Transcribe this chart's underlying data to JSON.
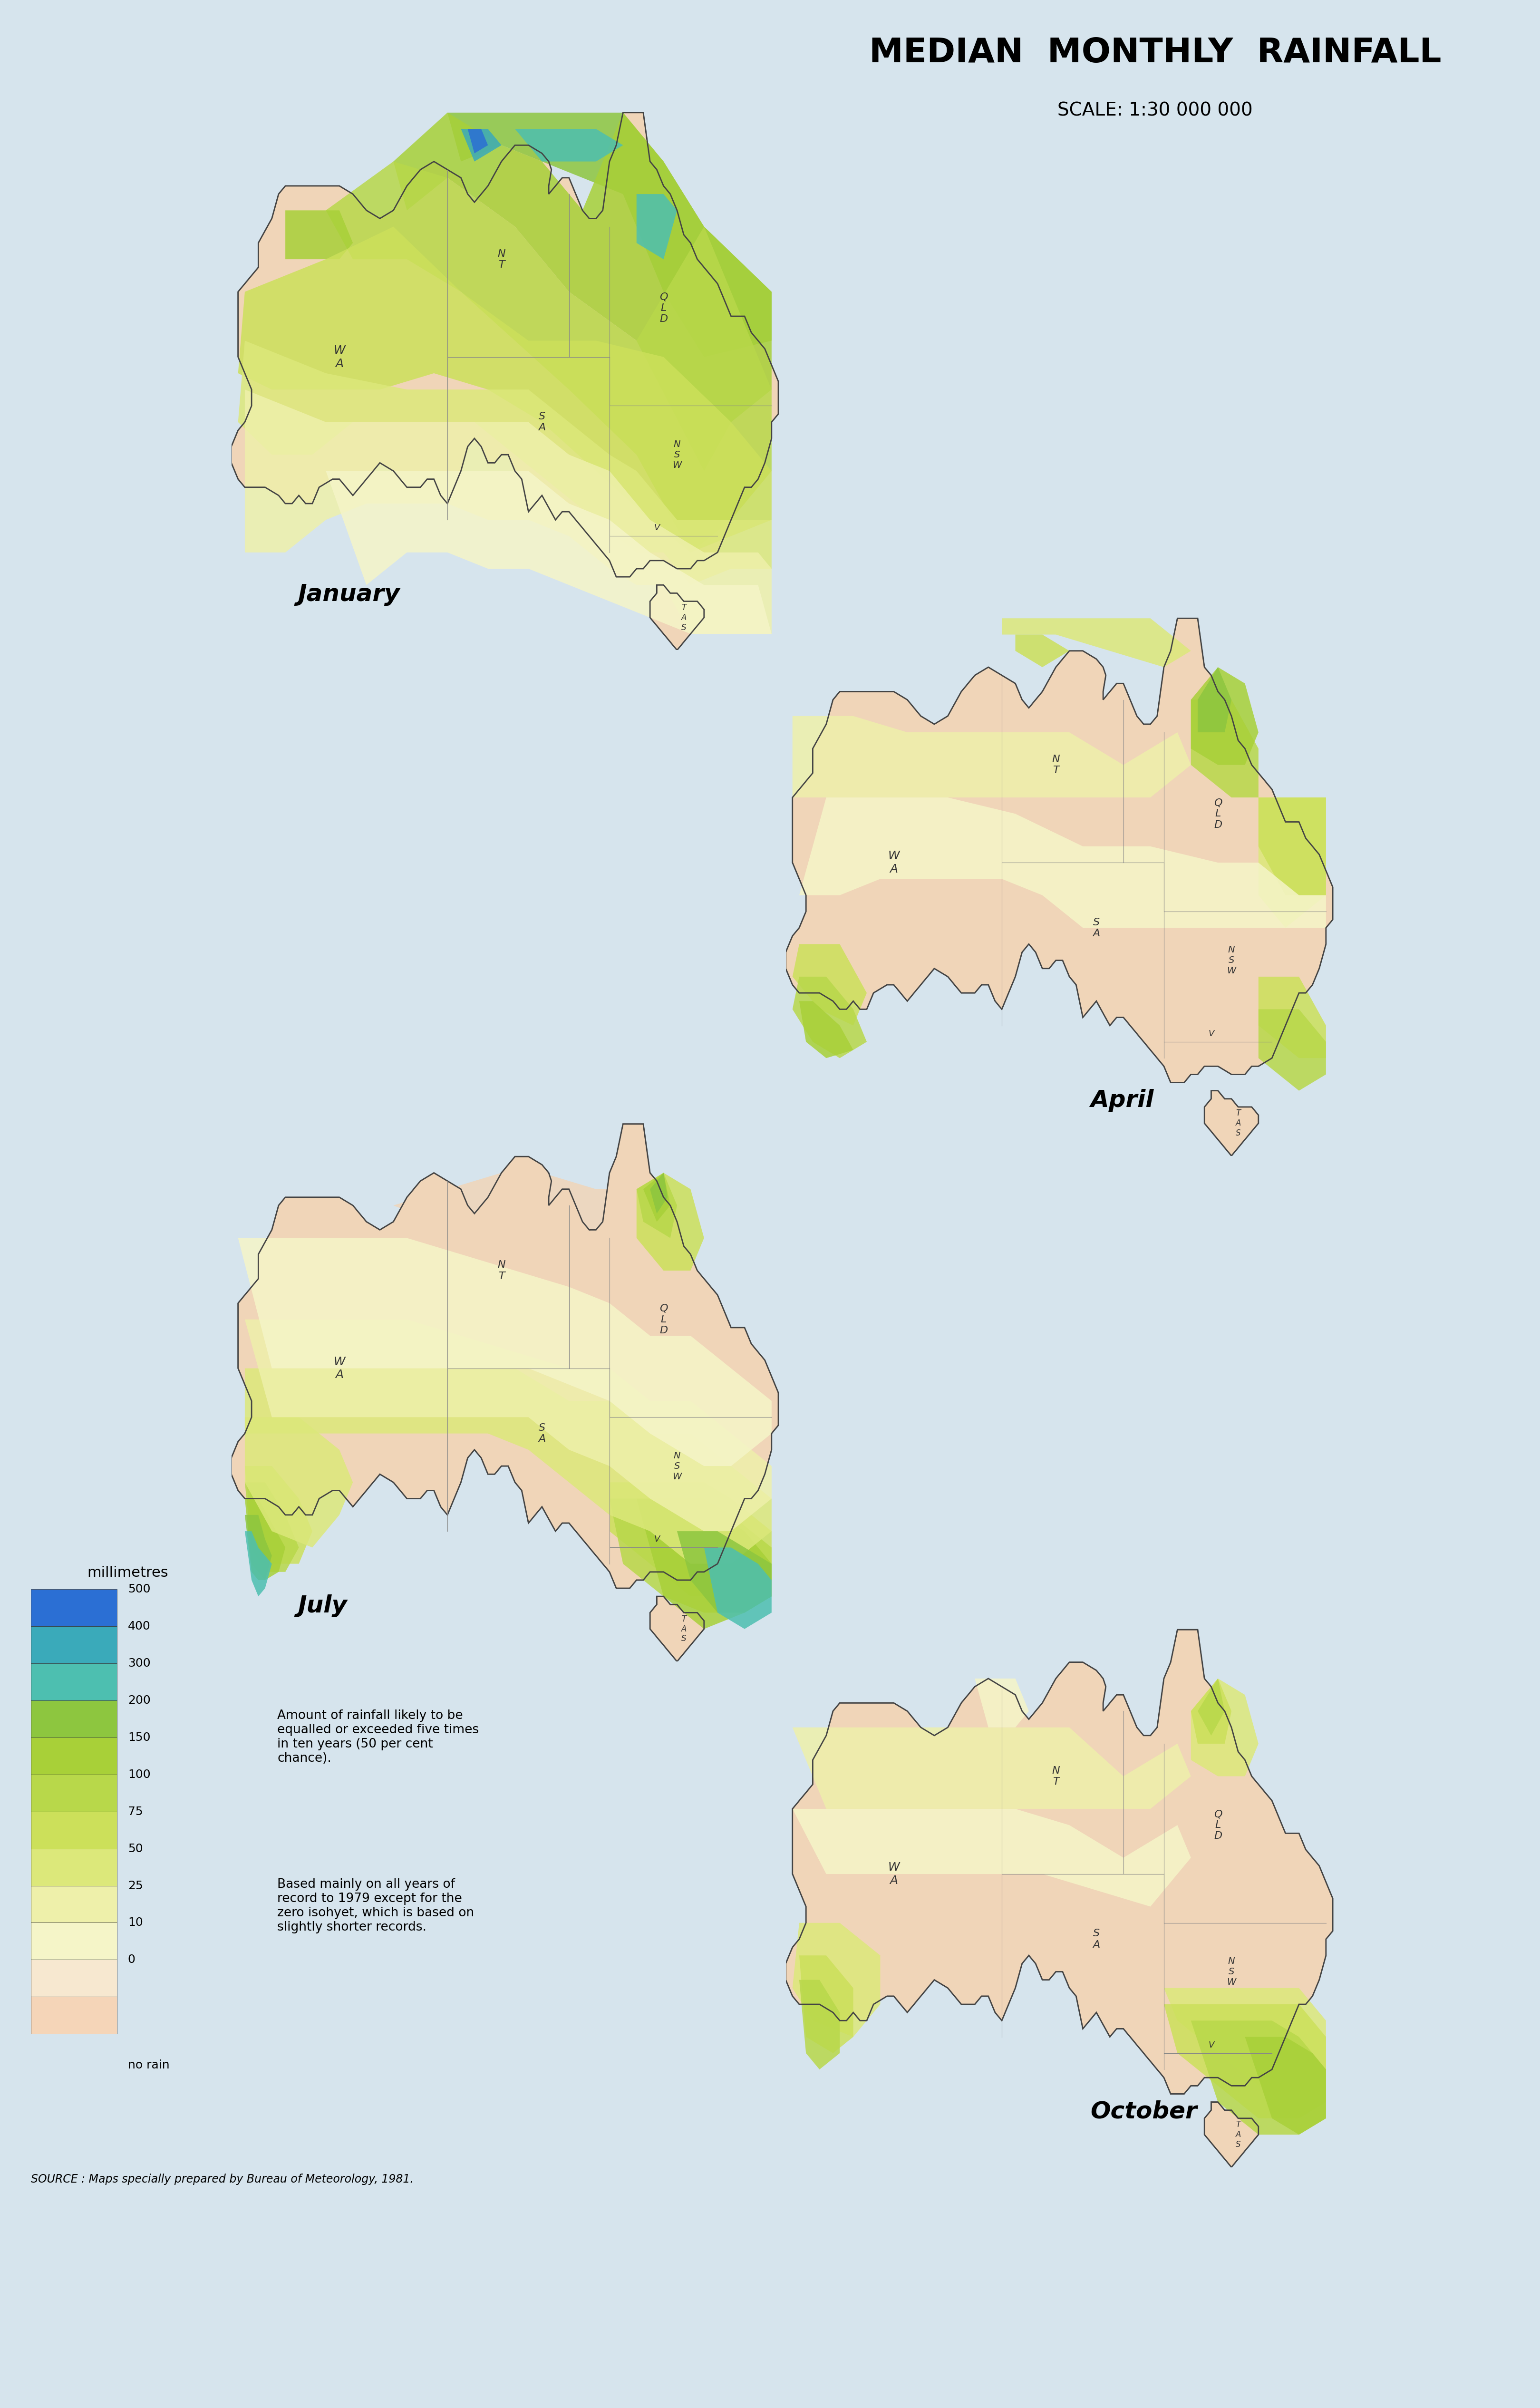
{
  "title": "MEDIAN  MONTHLY  RAINFALL",
  "scale": "SCALE: 1:30 000 000",
  "source": "SOURCE : Maps specially prepared by Bureau of Meteorology, 1981.",
  "background_color": "#d6e4ed",
  "months": [
    "January",
    "April",
    "July",
    "October"
  ],
  "legend_title": "millimetres",
  "legend_labels": [
    "500",
    "400",
    "300",
    "200",
    "150",
    "100",
    "75",
    "50",
    "25",
    "10",
    "0",
    "no rain"
  ],
  "legend_colors": [
    "#2b6fd4",
    "#3aaaba",
    "#4dbfb0",
    "#8dc63f",
    "#a8d038",
    "#b8d84a",
    "#cce05a",
    "#dce87a",
    "#eef0aa",
    "#f5f5c8",
    "#f7e8d0",
    "#f5d5b8"
  ],
  "note1": "Amount of rainfall likely to be\nequalled or exceeded five times\nin ten years (50 per cent\nchance).",
  "note2": "Based mainly on all years of\nrecord to 1979 except for the\nzero isohyet, which is based on\nslightly shorter records."
}
